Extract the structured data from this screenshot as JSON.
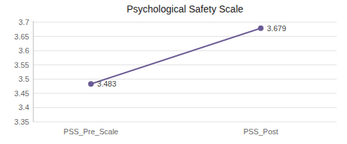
{
  "chart_data": {
    "type": "line",
    "title": "Psychological Safety Scale",
    "categories": [
      "PSS_Pre_Scale",
      "PSS_Post"
    ],
    "values": [
      3.483,
      3.679
    ],
    "color": "#6B5B95",
    "marker": "circle",
    "ylim": [
      3.35,
      3.705
    ],
    "yticks": [
      3.35,
      3.4,
      3.45,
      3.5,
      3.55,
      3.6,
      3.65,
      3.7
    ],
    "grid": true,
    "data_labels": true
  }
}
